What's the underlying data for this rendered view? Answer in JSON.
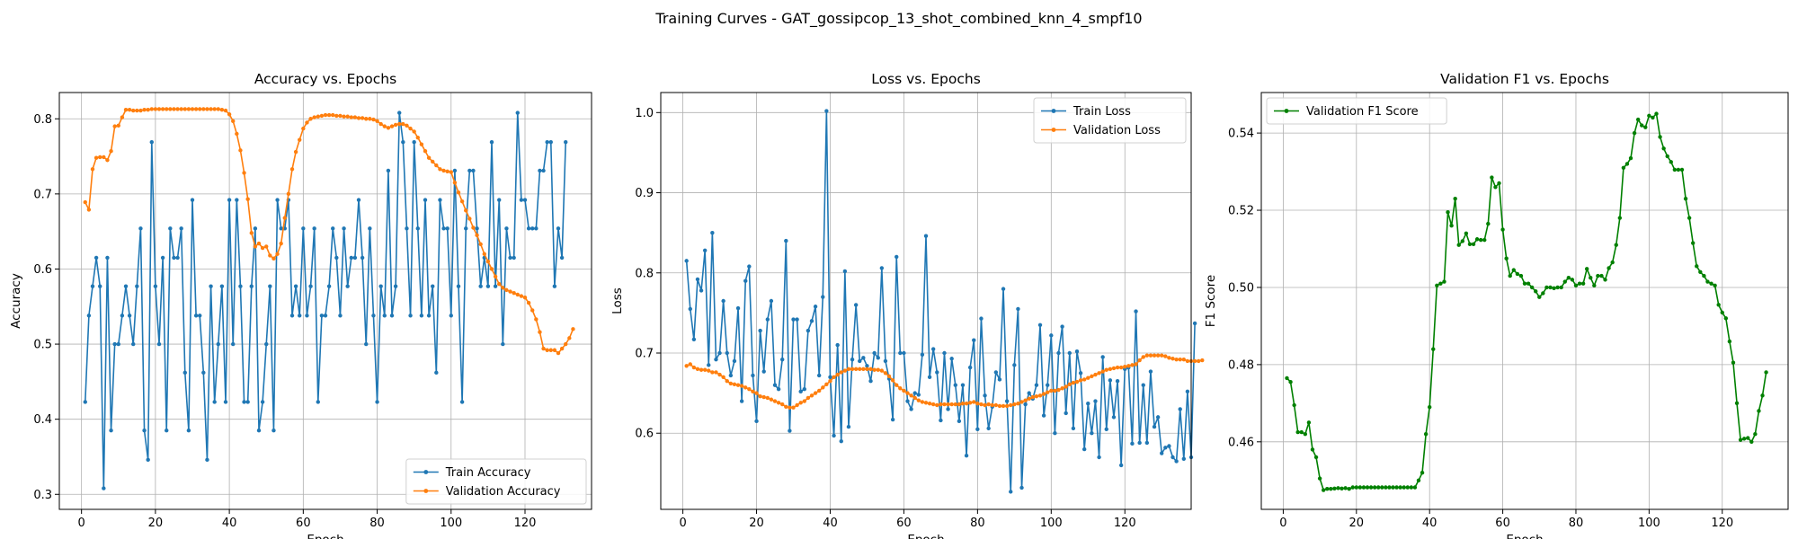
{
  "figure": {
    "title": "Training Curves - GAT_gossipcop_13_shot_combined_knn_4_smpf10"
  },
  "chart_data": [
    {
      "type": "line",
      "title": "Accuracy vs. Epochs",
      "xlabel": "Epoch",
      "ylabel": "Accuracy",
      "xlim": [
        -6,
        138
      ],
      "ylim": [
        0.28,
        0.835
      ],
      "xticks": [
        0,
        20,
        40,
        60,
        80,
        100,
        120
      ],
      "yticks": [
        0.3,
        0.4,
        0.5,
        0.6,
        0.7,
        0.8
      ],
      "ytick_decimals": 1,
      "grid": true,
      "legend": "lower-right",
      "series": [
        {
          "name": "Train Accuracy",
          "color": "#1f77b4",
          "x_start": 1,
          "values": [
            0.423,
            0.538,
            0.577,
            0.615,
            0.577,
            0.308,
            0.615,
            0.385,
            0.5,
            0.5,
            0.538,
            0.577,
            0.538,
            0.5,
            0.577,
            0.654,
            0.385,
            0.346,
            0.769,
            0.577,
            0.5,
            0.615,
            0.385,
            0.654,
            0.615,
            0.615,
            0.654,
            0.462,
            0.385,
            0.692,
            0.538,
            0.538,
            0.462,
            0.346,
            0.577,
            0.423,
            0.5,
            0.577,
            0.423,
            0.692,
            0.5,
            0.692,
            0.577,
            0.423,
            0.423,
            0.577,
            0.654,
            0.385,
            0.423,
            0.5,
            0.577,
            0.385,
            0.692,
            0.654,
            0.654,
            0.692,
            0.538,
            0.577,
            0.538,
            0.654,
            0.538,
            0.577,
            0.654,
            0.423,
            0.538,
            0.538,
            0.577,
            0.654,
            0.615,
            0.538,
            0.654,
            0.577,
            0.615,
            0.615,
            0.692,
            0.615,
            0.5,
            0.654,
            0.538,
            0.423,
            0.577,
            0.538,
            0.731,
            0.538,
            0.577,
            0.808,
            0.769,
            0.654,
            0.538,
            0.769,
            0.654,
            0.538,
            0.692,
            0.538,
            0.577,
            0.462,
            0.692,
            0.654,
            0.654,
            0.538,
            0.731,
            0.577,
            0.423,
            0.654,
            0.731,
            0.731,
            0.654,
            0.577,
            0.615,
            0.577,
            0.769,
            0.577,
            0.692,
            0.5,
            0.654,
            0.615,
            0.615,
            0.808,
            0.692,
            0.692,
            0.654,
            0.654,
            0.654,
            0.731,
            0.731,
            0.769,
            0.769,
            0.577,
            0.654,
            0.615,
            0.769
          ]
        },
        {
          "name": "Validation Accuracy",
          "color": "#ff7f0e",
          "x_start": 1,
          "values": [
            0.689,
            0.679,
            0.733,
            0.748,
            0.749,
            0.749,
            0.745,
            0.757,
            0.79,
            0.791,
            0.802,
            0.812,
            0.812,
            0.811,
            0.811,
            0.811,
            0.812,
            0.812,
            0.813,
            0.813,
            0.813,
            0.813,
            0.813,
            0.813,
            0.813,
            0.813,
            0.813,
            0.813,
            0.813,
            0.813,
            0.813,
            0.813,
            0.813,
            0.813,
            0.813,
            0.813,
            0.813,
            0.812,
            0.811,
            0.806,
            0.797,
            0.78,
            0.758,
            0.728,
            0.693,
            0.648,
            0.63,
            0.634,
            0.628,
            0.63,
            0.618,
            0.614,
            0.62,
            0.634,
            0.668,
            0.7,
            0.733,
            0.756,
            0.772,
            0.787,
            0.795,
            0.8,
            0.802,
            0.803,
            0.804,
            0.805,
            0.805,
            0.805,
            0.804,
            0.804,
            0.803,
            0.803,
            0.802,
            0.802,
            0.801,
            0.801,
            0.8,
            0.8,
            0.799,
            0.797,
            0.793,
            0.79,
            0.788,
            0.79,
            0.792,
            0.793,
            0.793,
            0.791,
            0.787,
            0.783,
            0.775,
            0.766,
            0.757,
            0.748,
            0.743,
            0.738,
            0.733,
            0.731,
            0.73,
            0.729,
            0.715,
            0.702,
            0.69,
            0.678,
            0.667,
            0.655,
            0.645,
            0.633,
            0.62,
            0.61,
            0.6,
            0.59,
            0.58,
            0.575,
            0.572,
            0.57,
            0.568,
            0.566,
            0.564,
            0.562,
            0.555,
            0.545,
            0.533,
            0.516,
            0.494,
            0.492,
            0.492,
            0.492,
            0.488,
            0.494,
            0.5,
            0.508,
            0.52
          ]
        }
      ]
    },
    {
      "type": "line",
      "title": "Loss vs. Epochs",
      "xlabel": "Epoch",
      "ylabel": "Loss",
      "xlim": [
        -6,
        138
      ],
      "ylim": [
        0.505,
        1.025
      ],
      "xticks": [
        0,
        20,
        40,
        60,
        80,
        100,
        120
      ],
      "yticks": [
        0.6,
        0.7,
        0.8,
        0.9,
        1.0
      ],
      "ytick_decimals": 1,
      "grid": true,
      "legend": "top-right",
      "series": [
        {
          "name": "Train Loss",
          "color": "#1f77b4",
          "x_start": 1,
          "values": [
            0.815,
            0.755,
            0.717,
            0.792,
            0.778,
            0.828,
            0.685,
            0.85,
            0.692,
            0.7,
            0.765,
            0.7,
            0.672,
            0.69,
            0.756,
            0.64,
            0.79,
            0.808,
            0.672,
            0.615,
            0.728,
            0.677,
            0.742,
            0.765,
            0.66,
            0.655,
            0.692,
            0.84,
            0.603,
            0.742,
            0.742,
            0.652,
            0.655,
            0.728,
            0.74,
            0.758,
            0.672,
            0.77,
            1.002,
            0.67,
            0.597,
            0.71,
            0.59,
            0.802,
            0.608,
            0.692,
            0.76,
            0.69,
            0.694,
            0.684,
            0.665,
            0.7,
            0.694,
            0.806,
            0.69,
            0.668,
            0.617,
            0.82,
            0.7,
            0.7,
            0.64,
            0.63,
            0.65,
            0.648,
            0.698,
            0.846,
            0.67,
            0.705,
            0.676,
            0.616,
            0.7,
            0.63,
            0.693,
            0.66,
            0.615,
            0.66,
            0.572,
            0.682,
            0.716,
            0.605,
            0.743,
            0.647,
            0.606,
            0.633,
            0.676,
            0.667,
            0.78,
            0.64,
            0.527,
            0.685,
            0.755,
            0.532,
            0.636,
            0.65,
            0.643,
            0.66,
            0.735,
            0.622,
            0.66,
            0.722,
            0.6,
            0.7,
            0.733,
            0.625,
            0.7,
            0.606,
            0.702,
            0.675,
            0.58,
            0.637,
            0.6,
            0.64,
            0.57,
            0.695,
            0.605,
            0.666,
            0.62,
            0.665,
            0.56,
            0.68,
            0.682,
            0.587,
            0.752,
            0.588,
            0.66,
            0.588,
            0.677,
            0.608,
            0.62,
            0.575,
            0.582,
            0.584,
            0.57,
            0.565,
            0.63,
            0.568,
            0.652,
            0.57,
            0.737
          ]
        },
        {
          "name": "Validation Loss",
          "color": "#ff7f0e",
          "x_start": 1,
          "values": [
            0.684,
            0.686,
            0.682,
            0.68,
            0.679,
            0.679,
            0.678,
            0.676,
            0.676,
            0.673,
            0.67,
            0.665,
            0.662,
            0.661,
            0.66,
            0.659,
            0.657,
            0.655,
            0.652,
            0.65,
            0.646,
            0.645,
            0.644,
            0.642,
            0.64,
            0.638,
            0.636,
            0.633,
            0.632,
            0.632,
            0.635,
            0.638,
            0.64,
            0.644,
            0.647,
            0.65,
            0.653,
            0.657,
            0.661,
            0.665,
            0.67,
            0.673,
            0.676,
            0.678,
            0.68,
            0.68,
            0.68,
            0.68,
            0.68,
            0.68,
            0.68,
            0.679,
            0.679,
            0.678,
            0.675,
            0.671,
            0.666,
            0.66,
            0.656,
            0.653,
            0.65,
            0.647,
            0.644,
            0.641,
            0.639,
            0.638,
            0.637,
            0.636,
            0.635,
            0.636,
            0.636,
            0.636,
            0.636,
            0.636,
            0.636,
            0.637,
            0.637,
            0.638,
            0.639,
            0.637,
            0.636,
            0.635,
            0.636,
            0.635,
            0.635,
            0.634,
            0.634,
            0.634,
            0.635,
            0.636,
            0.637,
            0.639,
            0.641,
            0.643,
            0.645,
            0.646,
            0.647,
            0.649,
            0.651,
            0.653,
            0.653,
            0.654,
            0.656,
            0.658,
            0.661,
            0.663,
            0.664,
            0.666,
            0.667,
            0.669,
            0.671,
            0.673,
            0.675,
            0.677,
            0.679,
            0.68,
            0.681,
            0.682,
            0.682,
            0.683,
            0.684,
            0.685,
            0.686,
            0.691,
            0.695,
            0.697,
            0.697,
            0.697,
            0.697,
            0.697,
            0.696,
            0.694,
            0.693,
            0.692,
            0.692,
            0.692,
            0.69,
            0.69,
            0.69,
            0.69,
            0.691
          ]
        }
      ]
    },
    {
      "type": "line",
      "title": "Validation F1 vs. Epochs",
      "xlabel": "Epoch",
      "ylabel": "F1 Score",
      "xlim": [
        -6,
        138
      ],
      "ylim": [
        0.4425,
        0.5505
      ],
      "xticks": [
        0,
        20,
        40,
        60,
        80,
        100,
        120
      ],
      "yticks": [
        0.46,
        0.48,
        0.5,
        0.52,
        0.54
      ],
      "ytick_decimals": 2,
      "grid": true,
      "legend": "top-left",
      "series": [
        {
          "name": "Validation F1 Score",
          "color": "#008000",
          "x_start": 1,
          "values": [
            0.4765,
            0.4755,
            0.4695,
            0.4625,
            0.4625,
            0.462,
            0.465,
            0.458,
            0.456,
            0.4505,
            0.4475,
            0.4478,
            0.4478,
            0.4479,
            0.448,
            0.4479,
            0.448,
            0.4478,
            0.4482,
            0.4482,
            0.4482,
            0.4482,
            0.4482,
            0.4482,
            0.4482,
            0.4482,
            0.4482,
            0.4482,
            0.4482,
            0.4482,
            0.4482,
            0.4482,
            0.4482,
            0.4482,
            0.4482,
            0.4482,
            0.45,
            0.452,
            0.462,
            0.469,
            0.484,
            0.5005,
            0.501,
            0.5015,
            0.5195,
            0.516,
            0.523,
            0.511,
            0.512,
            0.514,
            0.5112,
            0.5112,
            0.5125,
            0.5123,
            0.5123,
            0.5165,
            0.5285,
            0.526,
            0.527,
            0.515,
            0.5075,
            0.503,
            0.5045,
            0.5035,
            0.503,
            0.501,
            0.501,
            0.5,
            0.499,
            0.4975,
            0.4985,
            0.5,
            0.5,
            0.4998,
            0.5,
            0.5,
            0.5015,
            0.5025,
            0.502,
            0.5005,
            0.501,
            0.501,
            0.5048,
            0.5025,
            0.5005,
            0.503,
            0.503,
            0.502,
            0.505,
            0.5065,
            0.511,
            0.518,
            0.531,
            0.532,
            0.5335,
            0.54,
            0.5435,
            0.542,
            0.5415,
            0.5445,
            0.544,
            0.545,
            0.539,
            0.536,
            0.534,
            0.5325,
            0.5305,
            0.5305,
            0.5305,
            0.523,
            0.518,
            0.5115,
            0.5055,
            0.504,
            0.503,
            0.5015,
            0.501,
            0.5005,
            0.4955,
            0.4935,
            0.492,
            0.486,
            0.4805,
            0.47,
            0.4605,
            0.4608,
            0.461,
            0.46,
            0.462,
            0.468,
            0.472,
            0.478
          ]
        }
      ]
    }
  ]
}
